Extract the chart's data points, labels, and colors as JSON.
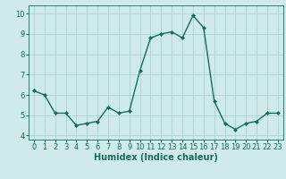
{
  "x": [
    0,
    1,
    2,
    3,
    4,
    5,
    6,
    7,
    8,
    9,
    10,
    11,
    12,
    13,
    14,
    15,
    16,
    17,
    18,
    19,
    20,
    21,
    22,
    23
  ],
  "y": [
    6.2,
    6.0,
    5.1,
    5.1,
    4.5,
    4.6,
    4.7,
    5.4,
    5.1,
    5.2,
    7.2,
    8.8,
    9.0,
    9.1,
    8.8,
    9.9,
    9.3,
    5.7,
    4.6,
    4.3,
    4.6,
    4.7,
    5.1,
    5.1
  ],
  "line_color": "#1a6b5a",
  "marker": "D",
  "marker_size": 2,
  "line_width": 1.0,
  "bg_color": "#ceeaea",
  "grid_color": "#aad4d4",
  "xlabel": "Humidex (Indice chaleur)",
  "xlabel_fontsize": 7,
  "tick_fontsize": 6,
  "ylim": [
    3.8,
    10.4
  ],
  "yticks": [
    4,
    5,
    6,
    7,
    8,
    9,
    10
  ],
  "xticks": [
    0,
    1,
    2,
    3,
    4,
    5,
    6,
    7,
    8,
    9,
    10,
    11,
    12,
    13,
    14,
    15,
    16,
    17,
    18,
    19,
    20,
    21,
    22,
    23
  ]
}
